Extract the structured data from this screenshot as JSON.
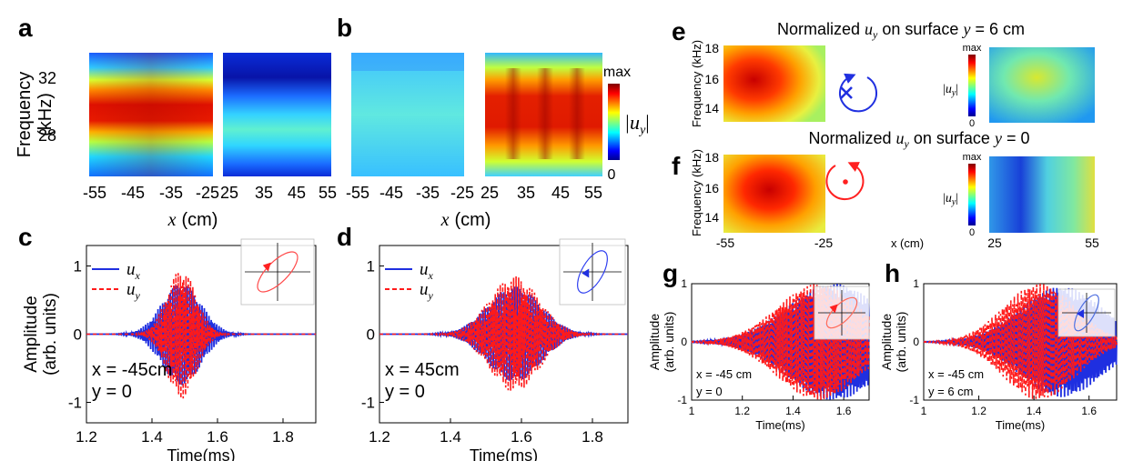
{
  "panels": {
    "a": "a",
    "b": "b",
    "c": "c",
    "d": "d",
    "e": "e",
    "f": "f",
    "g": "g",
    "h": "h"
  },
  "colors": {
    "ux": "#1f2fe0",
    "uy": "#ff1a1a"
  },
  "icons": {
    "e_rotation": "clockwise-rotation-into-page-icon",
    "f_rotation": "counterclockwise-rotation-out-of-page-icon",
    "polarization_inset": "polarization-ellipse-icon"
  },
  "chart_data": [
    {
      "panel": "a",
      "type": "heatmap",
      "title": "",
      "ylabel": "Frequency (kHz)",
      "ylabel_lines": [
        "Frequency",
        "(kHz)"
      ],
      "xlabel": "x (cm)",
      "x_var": "x",
      "x_unit": "(cm)",
      "subplots": [
        {
          "xticks": [
            "-55",
            "-45",
            "-35",
            "-25"
          ],
          "xlim": [
            -55,
            -25
          ]
        },
        {
          "xticks": [
            "25",
            "35",
            "45",
            "55"
          ],
          "xlim": [
            25,
            55
          ]
        }
      ],
      "yticks": [
        "32",
        "28"
      ],
      "ylim": [
        25,
        33.5
      ],
      "description_high_band_kHz": [
        28,
        31
      ],
      "colorbar": {
        "top": "max",
        "bottom": "0",
        "label": "|u_y|"
      }
    },
    {
      "panel": "b",
      "type": "heatmap",
      "title": "",
      "xlabel": "x (cm)",
      "x_var": "x",
      "x_unit": "(cm)",
      "subplots": [
        {
          "xticks": [
            "-55",
            "-45",
            "-35",
            "-25"
          ],
          "xlim": [
            -55,
            -25
          ]
        },
        {
          "xticks": [
            "25",
            "35",
            "45",
            "55"
          ],
          "xlim": [
            25,
            55
          ]
        }
      ],
      "colorbar": {
        "top": "max",
        "bottom": "0",
        "label": "|u",
        "label_sub": "y",
        "label_close": "|"
      }
    },
    {
      "panel": "c",
      "type": "line",
      "ylabel": "Amplitude (arb. units)",
      "ylabel_lines": [
        "Amplitude",
        "(arb. units)"
      ],
      "xlabel": "Time(ms)",
      "xticks": [
        "1.2",
        "1.4",
        "1.6",
        "1.8"
      ],
      "yticks": [
        "1",
        "0",
        "-1"
      ],
      "xlim": [
        1.2,
        1.9
      ],
      "ylim": [
        -1.3,
        1.3
      ],
      "series": [
        {
          "name": "u",
          "sub": "x",
          "style": "solid",
          "t0": 1.49,
          "sigma": 0.06,
          "freq": 29,
          "amp": 0.75,
          "phase": 0
        },
        {
          "name": "u",
          "sub": "y",
          "style": "dashed",
          "t0": 1.49,
          "sigma": 0.045,
          "freq": 29,
          "amp": 0.95,
          "phase": 1.2
        }
      ],
      "annotation": [
        "x = -45cm",
        "y = 0"
      ]
    },
    {
      "panel": "d",
      "type": "line",
      "xlabel": "Time(ms)",
      "xticks": [
        "1.2",
        "1.4",
        "1.6",
        "1.8"
      ],
      "yticks": [
        "1",
        "0",
        "-1"
      ],
      "xlim": [
        1.2,
        1.9
      ],
      "ylim": [
        -1.3,
        1.3
      ],
      "series": [
        {
          "name": "u",
          "sub": "x",
          "style": "solid",
          "t0": 1.58,
          "sigma": 0.075,
          "freq": 29,
          "amp": 0.7,
          "phase": 0
        },
        {
          "name": "u",
          "sub": "y",
          "style": "dashed",
          "t0": 1.58,
          "sigma": 0.07,
          "freq": 29,
          "amp": 0.85,
          "phase": -1.3
        }
      ],
      "annotation": [
        "x = 45cm",
        "y = 0"
      ]
    },
    {
      "panel": "e",
      "type": "heatmap",
      "title": "Normalized u_y on surface y = 6 cm",
      "ylabel": "Frequency (kHz)",
      "yticks": [
        "18",
        "16",
        "14"
      ],
      "ylim": [
        13,
        18
      ],
      "colorbar": {
        "top": "max",
        "bottom": "0",
        "label": "|u_y|"
      }
    },
    {
      "panel": "f",
      "type": "heatmap",
      "title": "Normalized u_y on surface y = 0",
      "ylabel": "Frequency (kHz)",
      "yticks": [
        "18",
        "16",
        "14"
      ],
      "ylim": [
        13,
        18
      ],
      "xticks_left": [
        "-55",
        "-25"
      ],
      "xticks_right": [
        "25",
        "55"
      ],
      "xlabel": "x (cm)",
      "colorbar": {
        "top": "max",
        "bottom": "0",
        "label": "|u_y|"
      }
    },
    {
      "panel": "g",
      "type": "line",
      "ylabel": "Amplitude (arb. units)",
      "ylabel_lines": [
        "Amplitude",
        "(arb. units)"
      ],
      "xlabel": "Time(ms)",
      "xticks": [
        "1",
        "1.2",
        "1.4",
        "1.6"
      ],
      "yticks": [
        "1",
        "0",
        "-1"
      ],
      "xlim": [
        1.0,
        1.7
      ],
      "ylim": [
        -1.0,
        1.0
      ],
      "series": [
        {
          "style": "solid",
          "t0": 1.56,
          "sigma": 0.18,
          "freq": 16,
          "amp": 1.0,
          "phase": 0
        },
        {
          "style": "dashed",
          "t0": 1.5,
          "sigma": 0.16,
          "freq": 16,
          "amp": 1.0,
          "phase": 1.3
        }
      ],
      "annotation": [
        "x = -45 cm",
        "y =  0"
      ]
    },
    {
      "panel": "h",
      "type": "line",
      "xlabel": "Time(ms)",
      "ylabel": "Amplitude (arb. units)",
      "ylabel_lines": [
        "Amplitude",
        "(arb. units)"
      ],
      "xticks": [
        "1",
        "1.2",
        "1.4",
        "1.6"
      ],
      "yticks": [
        "1",
        "0",
        "-1"
      ],
      "xlim": [
        1.0,
        1.7
      ],
      "ylim": [
        -1.0,
        1.0
      ],
      "series": [
        {
          "style": "solid",
          "t0": 1.5,
          "sigma": 0.15,
          "freq": 16,
          "amp": 0.95,
          "phase": 0
        },
        {
          "style": "dashed",
          "t0": 1.42,
          "sigma": 0.13,
          "freq": 16,
          "amp": 1.0,
          "phase": -1.3
        }
      ],
      "annotation": [
        "x = -45 cm",
        "y =  6 cm"
      ]
    }
  ]
}
